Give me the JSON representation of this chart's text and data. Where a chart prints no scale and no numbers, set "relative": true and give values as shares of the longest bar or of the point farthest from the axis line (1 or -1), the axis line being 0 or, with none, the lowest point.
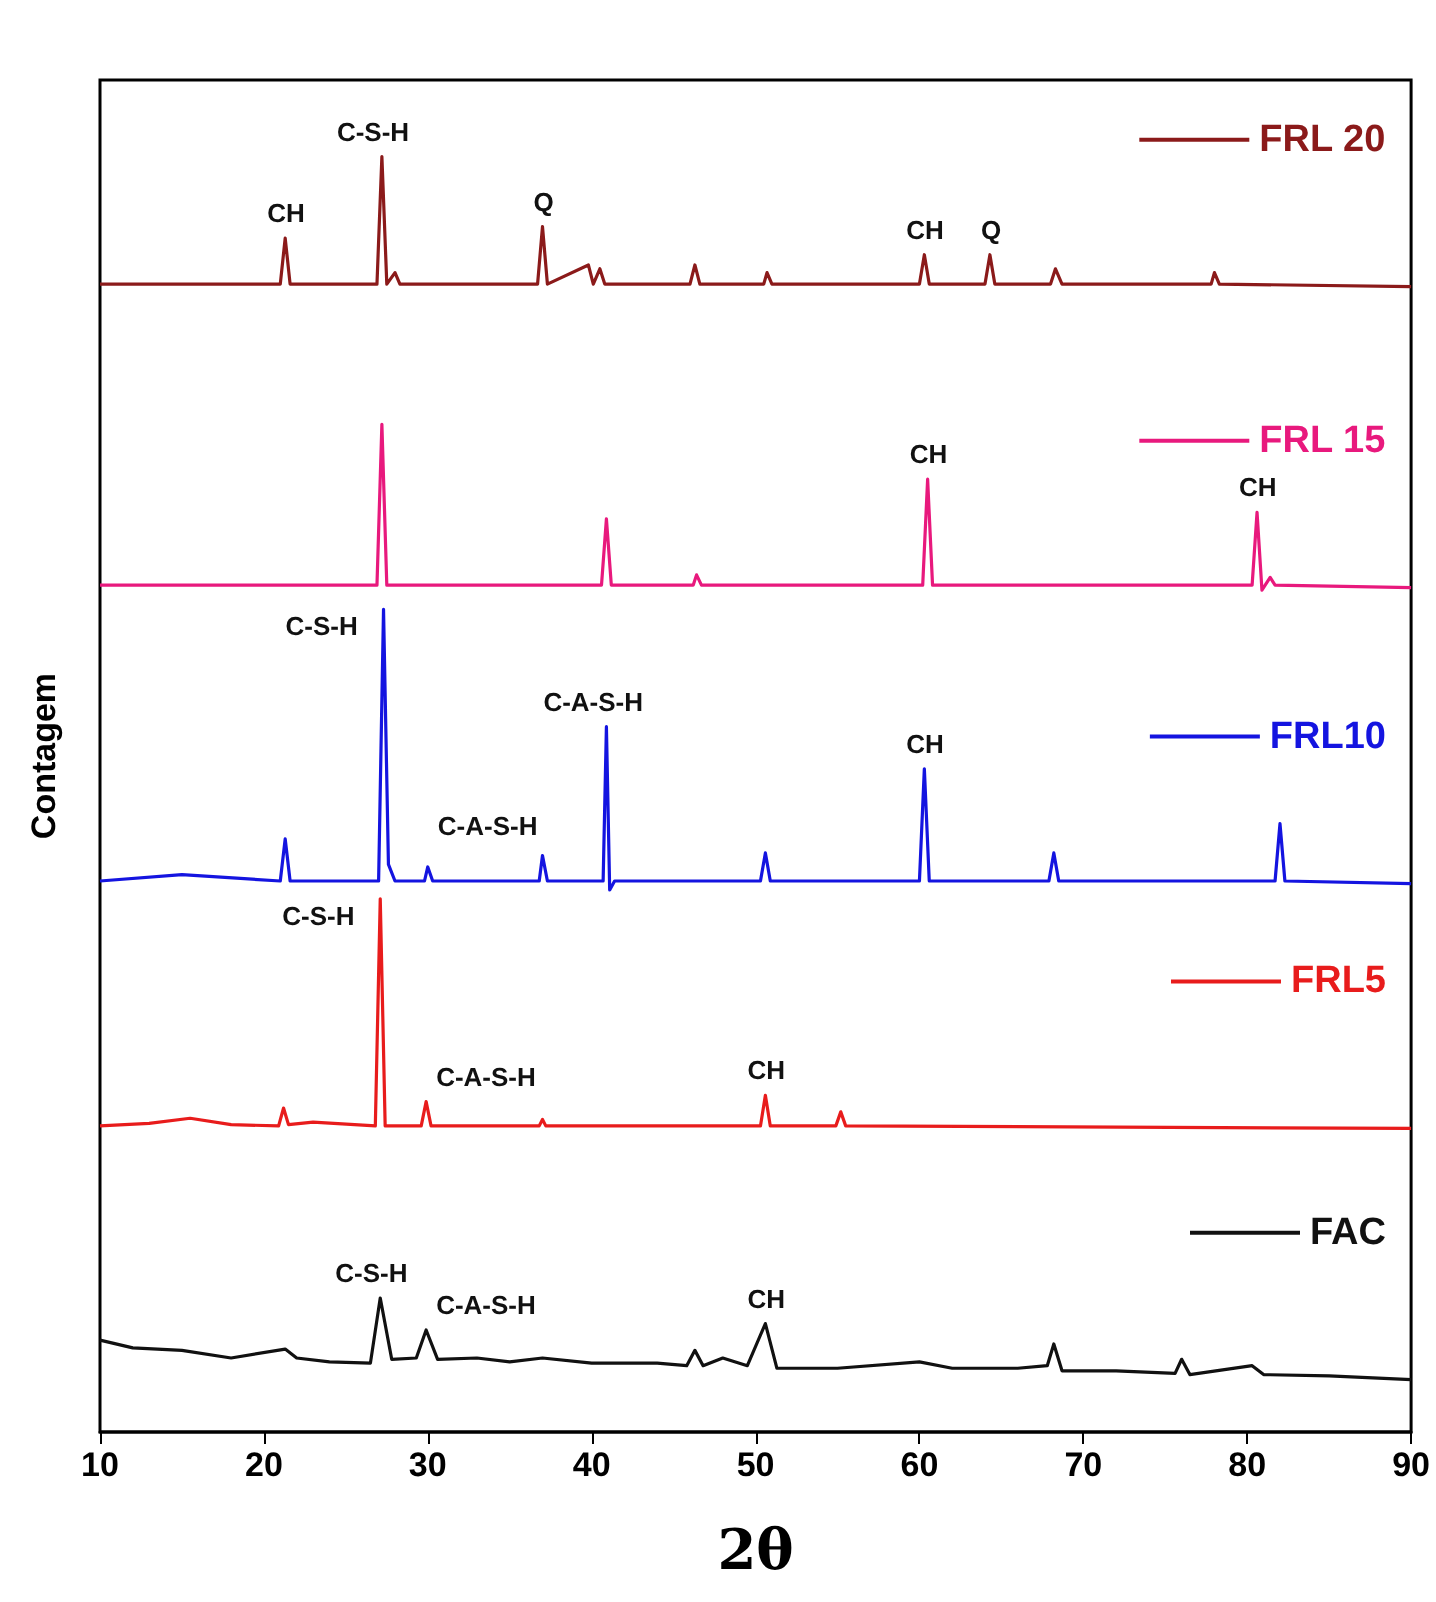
{
  "chart_data": {
    "type": "line",
    "relative": true,
    "xlabel": "2θ",
    "ylabel": "Contagem",
    "xlim": [
      10,
      90
    ],
    "xticks": [
      10,
      20,
      30,
      40,
      50,
      60,
      70,
      80,
      90
    ],
    "grid": false,
    "legend": "right",
    "marker": "none",
    "series": [
      {
        "name": "FRL 20",
        "color": "#8b1a1a",
        "x": [
          10,
          21.0,
          21.3,
          21.6,
          26.9,
          27.2,
          27.5,
          28.0,
          28.3,
          36.7,
          37.0,
          37.3,
          39.8,
          40.1,
          40.5,
          40.8,
          46.0,
          46.3,
          46.6,
          50.5,
          50.7,
          51.0,
          60.0,
          60.3,
          60.6,
          64.0,
          64.3,
          64.6,
          68.0,
          68.3,
          68.7,
          77.8,
          78.0,
          78.3,
          90
        ],
        "values": [
          0.9,
          0.9,
          0.936,
          0.9,
          0.9,
          1.0,
          0.9,
          0.909,
          0.9,
          0.9,
          0.945,
          0.9,
          0.915,
          0.9,
          0.912,
          0.9,
          0.9,
          0.915,
          0.9,
          0.9,
          0.909,
          0.9,
          0.9,
          0.923,
          0.9,
          0.9,
          0.923,
          0.9,
          0.9,
          0.912,
          0.9,
          0.9,
          0.909,
          0.9,
          0.898
        ]
      },
      {
        "name": "FRL 15",
        "color": "#e8197d",
        "x": [
          10,
          26.9,
          27.2,
          27.5,
          40.6,
          40.9,
          41.2,
          46.2,
          46.4,
          46.7,
          60.2,
          60.5,
          60.8,
          80.3,
          80.6,
          80.9,
          81.4,
          81.7,
          90
        ],
        "values": [
          0.664,
          0.664,
          0.79,
          0.664,
          0.664,
          0.716,
          0.664,
          0.664,
          0.672,
          0.664,
          0.664,
          0.747,
          0.664,
          0.664,
          0.721,
          0.66,
          0.67,
          0.664,
          0.662
        ]
      },
      {
        "name": "FRL10",
        "color": "#1414e0",
        "x": [
          10,
          15,
          21.0,
          21.3,
          21.6,
          27.0,
          27.3,
          27.6,
          28.0,
          29.8,
          30.0,
          30.3,
          36.8,
          37.0,
          37.3,
          40.7,
          40.9,
          41.1,
          41.4,
          50.3,
          50.6,
          50.9,
          60.0,
          60.3,
          60.6,
          67.9,
          68.2,
          68.5,
          81.7,
          82.0,
          82.3,
          90
        ],
        "values": [
          0.432,
          0.437,
          0.432,
          0.465,
          0.432,
          0.432,
          0.645,
          0.445,
          0.432,
          0.432,
          0.443,
          0.432,
          0.432,
          0.452,
          0.432,
          0.432,
          0.553,
          0.425,
          0.432,
          0.432,
          0.454,
          0.432,
          0.432,
          0.52,
          0.432,
          0.432,
          0.454,
          0.432,
          0.432,
          0.477,
          0.432,
          0.43
        ]
      },
      {
        "name": "FRL5",
        "color": "#e81c1c",
        "x": [
          10,
          13,
          15.5,
          18,
          20.9,
          21.2,
          21.5,
          23,
          26.8,
          27.1,
          27.4,
          29.6,
          29.9,
          30.2,
          36.8,
          37.0,
          37.2,
          50.3,
          50.6,
          50.9,
          54.9,
          55.2,
          55.5,
          90
        ],
        "values": [
          0.24,
          0.242,
          0.246,
          0.241,
          0.24,
          0.254,
          0.241,
          0.243,
          0.24,
          0.418,
          0.24,
          0.24,
          0.259,
          0.24,
          0.24,
          0.245,
          0.24,
          0.24,
          0.264,
          0.24,
          0.24,
          0.251,
          0.24,
          0.238
        ]
      },
      {
        "name": "FAC",
        "color": "#111111",
        "x": [
          10,
          12,
          15,
          18,
          21.3,
          22,
          24,
          26.5,
          27.1,
          27.8,
          29.3,
          29.9,
          30.6,
          33,
          35,
          37,
          40,
          44,
          45.8,
          46.3,
          46.8,
          48,
          49.5,
          50.6,
          51.3,
          55,
          60,
          62,
          66,
          67.8,
          68.2,
          68.7,
          72,
          75.6,
          76,
          76.5,
          80.3,
          81,
          85,
          90
        ],
        "values": [
          0.072,
          0.066,
          0.064,
          0.058,
          0.065,
          0.058,
          0.055,
          0.054,
          0.105,
          0.057,
          0.058,
          0.08,
          0.057,
          0.058,
          0.055,
          0.058,
          0.054,
          0.054,
          0.052,
          0.064,
          0.052,
          0.058,
          0.052,
          0.085,
          0.05,
          0.05,
          0.055,
          0.05,
          0.05,
          0.052,
          0.069,
          0.048,
          0.048,
          0.046,
          0.057,
          0.045,
          0.052,
          0.045,
          0.044,
          0.041
        ]
      }
    ],
    "annotations": [
      {
        "text": "CH",
        "x": 21.3,
        "y": 0.936
      },
      {
        "text": "C-S-H",
        "x": 27.2,
        "y": 1.0
      },
      {
        "text": "Q",
        "x": 37.0,
        "y": 0.945
      },
      {
        "text": "CH",
        "x": 60.3,
        "y": 0.923
      },
      {
        "text": "Q",
        "x": 64.3,
        "y": 0.923
      },
      {
        "text": "CH",
        "x": 60.5,
        "y": 0.747
      },
      {
        "text": "CH",
        "x": 80.6,
        "y": 0.721
      },
      {
        "text": "C-S-H",
        "x": 27.3,
        "y": 0.645
      },
      {
        "text": "C-A-S-H",
        "x": 40.9,
        "y": 0.553
      },
      {
        "text": "C-A-S-H",
        "x": 30.0,
        "y": 0.443
      },
      {
        "text": "CH",
        "x": 60.3,
        "y": 0.52
      },
      {
        "text": "C-S-H",
        "x": 27.1,
        "y": 0.418
      },
      {
        "text": "C-A-S-H",
        "x": 29.9,
        "y": 0.259
      },
      {
        "text": "CH",
        "x": 50.6,
        "y": 0.264
      },
      {
        "text": "C-S-H",
        "x": 27.1,
        "y": 0.105
      },
      {
        "text": "C-A-S-H",
        "x": 29.9,
        "y": 0.08
      },
      {
        "text": "CH",
        "x": 50.6,
        "y": 0.085
      }
    ]
  }
}
